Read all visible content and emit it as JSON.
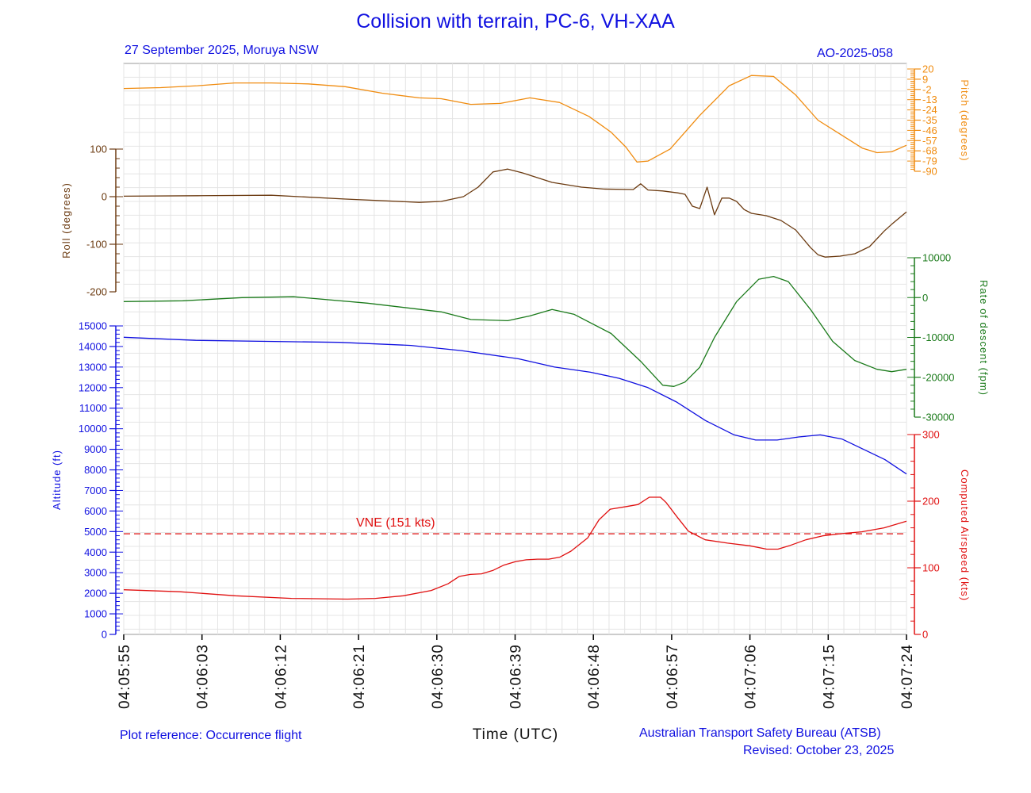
{
  "header": {
    "title": "Collision with terrain, PC-6, VH-XAA",
    "subtitle": "27 September 2025, Moruya NSW",
    "occurrence": "AO-2025-058"
  },
  "footer": {
    "plot_reference": "Plot reference: Occurrence flight",
    "agency": "Australian Transport Safety Bureau (ATSB)",
    "revised": "Revised: October 23, 2025"
  },
  "chart_data": {
    "type": "line",
    "xlabel": "Time (UTC)",
    "x_ticks": [
      "04:05:55",
      "04:06:03",
      "04:06:12",
      "04:06:21",
      "04:06:30",
      "04:06:39",
      "04:06:48",
      "04:06:57",
      "04:07:06",
      "04:07:15",
      "04:07:24"
    ],
    "grid": true,
    "colors": {
      "pitch": "#f08c10",
      "roll": "#6b3a10",
      "rod": "#1a7a1a",
      "altitude": "#1010e0",
      "airspeed": "#e01010"
    },
    "axes": {
      "pitch": {
        "label": "Pitch (degrees)",
        "ticks": [
          "20",
          "9",
          "-2",
          "-13",
          "-24",
          "-35",
          "-46",
          "-57",
          "-68",
          "-79",
          "-90"
        ],
        "range": [
          -90,
          20
        ],
        "side": "right"
      },
      "roll": {
        "label": "Roll (degrees)",
        "ticks": [
          "100",
          "0",
          "-100",
          "-200"
        ],
        "range": [
          -200,
          100
        ],
        "side": "left"
      },
      "rod": {
        "label": "Rate of descent (fpm)",
        "ticks": [
          "10000",
          "0",
          "-10000",
          "-20000",
          "-30000"
        ],
        "range": [
          -30000,
          10000
        ],
        "side": "right"
      },
      "altitude": {
        "label": "Altitude (ft)",
        "ticks": [
          "15000",
          "14000",
          "13000",
          "12000",
          "11000",
          "10000",
          "9000",
          "8000",
          "7000",
          "6000",
          "5000",
          "4000",
          "3000",
          "2000",
          "1000",
          "0"
        ],
        "range": [
          0,
          15000
        ],
        "side": "left"
      },
      "airspeed": {
        "label": "Computed Airspeed (kts)",
        "ticks": [
          "300",
          "200",
          "100",
          "0"
        ],
        "range": [
          0,
          300
        ],
        "side": "right"
      }
    },
    "reference_line": {
      "label": "VNE (151 kts)",
      "value": 151,
      "axis": "airspeed"
    },
    "series": [
      {
        "key": "pitch",
        "axis": "pitch",
        "points": [
          [
            0,
            -1
          ],
          [
            5,
            0
          ],
          [
            10,
            2
          ],
          [
            15,
            5
          ],
          [
            20,
            5
          ],
          [
            25,
            4
          ],
          [
            30,
            1
          ],
          [
            35,
            -6
          ],
          [
            40,
            -11
          ],
          [
            43,
            -12
          ],
          [
            47,
            -18
          ],
          [
            51,
            -17
          ],
          [
            55,
            -11
          ],
          [
            59,
            -16
          ],
          [
            63,
            -31
          ],
          [
            66,
            -48
          ],
          [
            68,
            -64
          ],
          [
            69.5,
            -80
          ],
          [
            71,
            -79
          ],
          [
            74,
            -66
          ],
          [
            78,
            -30
          ],
          [
            82,
            2
          ],
          [
            85,
            13
          ],
          [
            88,
            12
          ],
          [
            91,
            -8
          ],
          [
            94,
            -35
          ],
          [
            97,
            -50
          ],
          [
            100,
            -65
          ],
          [
            102,
            -70
          ],
          [
            104,
            -69
          ],
          [
            106,
            -62
          ]
        ]
      },
      {
        "key": "roll",
        "axis": "roll",
        "points": [
          [
            0,
            1
          ],
          [
            10,
            2
          ],
          [
            20,
            3
          ],
          [
            30,
            -5
          ],
          [
            40,
            -12
          ],
          [
            43,
            -10
          ],
          [
            46,
            0
          ],
          [
            48,
            20
          ],
          [
            50,
            52
          ],
          [
            52,
            58
          ],
          [
            54,
            50
          ],
          [
            58,
            30
          ],
          [
            62,
            20
          ],
          [
            65,
            16
          ],
          [
            69,
            15
          ],
          [
            70,
            27
          ],
          [
            71,
            14
          ],
          [
            73,
            12
          ],
          [
            75,
            8
          ],
          [
            76,
            5
          ],
          [
            77,
            -20
          ],
          [
            78,
            -25
          ],
          [
            79,
            20
          ],
          [
            80,
            -38
          ],
          [
            81,
            -3
          ],
          [
            82,
            -3
          ],
          [
            83,
            -10
          ],
          [
            84,
            -27
          ],
          [
            85,
            -35
          ],
          [
            87,
            -40
          ],
          [
            89,
            -50
          ],
          [
            91,
            -70
          ],
          [
            93,
            -107
          ],
          [
            94,
            -122
          ],
          [
            95,
            -127
          ],
          [
            97,
            -125
          ],
          [
            99,
            -120
          ],
          [
            101,
            -105
          ],
          [
            103,
            -72
          ],
          [
            104,
            -58
          ],
          [
            105,
            -45
          ],
          [
            106,
            -32
          ]
        ]
      },
      {
        "key": "rod",
        "axis": "rod",
        "points": [
          [
            0,
            -1000
          ],
          [
            8,
            -800
          ],
          [
            16,
            0
          ],
          [
            23,
            200
          ],
          [
            33,
            -1400
          ],
          [
            43,
            -3600
          ],
          [
            47,
            -5500
          ],
          [
            52,
            -5800
          ],
          [
            55,
            -4600
          ],
          [
            58,
            -3000
          ],
          [
            61,
            -4200
          ],
          [
            66,
            -9000
          ],
          [
            70,
            -16000
          ],
          [
            73,
            -22000
          ],
          [
            74.5,
            -22300
          ],
          [
            76,
            -21200
          ],
          [
            78,
            -17500
          ],
          [
            80,
            -10000
          ],
          [
            83,
            -1000
          ],
          [
            86,
            4600
          ],
          [
            88,
            5300
          ],
          [
            90,
            4000
          ],
          [
            93,
            -3000
          ],
          [
            96,
            -11000
          ],
          [
            99,
            -15800
          ],
          [
            102,
            -18000
          ],
          [
            104,
            -18600
          ],
          [
            106,
            -18000
          ]
        ]
      },
      {
        "key": "altitude",
        "axis": "altitude",
        "points": [
          [
            0,
            14450
          ],
          [
            10,
            14300
          ],
          [
            20,
            14250
          ],
          [
            30,
            14200
          ],
          [
            40,
            14050
          ],
          [
            47,
            13800
          ],
          [
            55,
            13400
          ],
          [
            60,
            13000
          ],
          [
            65,
            12750
          ],
          [
            69,
            12450
          ],
          [
            73,
            12000
          ],
          [
            77,
            11300
          ],
          [
            81,
            10400
          ],
          [
            85,
            9700
          ],
          [
            88,
            9450
          ],
          [
            91,
            9450
          ],
          [
            94,
            9600
          ],
          [
            97,
            9700
          ],
          [
            100,
            9500
          ],
          [
            103,
            9000
          ],
          [
            106,
            8500
          ],
          [
            109,
            7800
          ]
        ]
      },
      {
        "key": "airspeed",
        "axis": "airspeed",
        "points": [
          [
            0,
            67
          ],
          [
            10,
            64
          ],
          [
            20,
            58
          ],
          [
            30,
            54
          ],
          [
            40,
            53
          ],
          [
            45,
            54
          ],
          [
            50,
            58
          ],
          [
            55,
            66
          ],
          [
            58,
            76
          ],
          [
            60,
            87
          ],
          [
            62,
            90
          ],
          [
            64,
            91
          ],
          [
            66,
            96
          ],
          [
            68,
            104
          ],
          [
            70,
            109
          ],
          [
            72,
            112
          ],
          [
            74,
            113
          ],
          [
            76,
            113
          ],
          [
            78,
            116
          ],
          [
            80,
            125
          ],
          [
            83,
            145
          ],
          [
            85,
            172
          ],
          [
            87,
            188
          ],
          [
            90,
            192
          ],
          [
            92,
            195
          ],
          [
            94,
            206
          ],
          [
            96,
            206
          ],
          [
            97,
            198
          ],
          [
            99,
            176
          ],
          [
            101,
            155
          ],
          [
            104,
            142
          ],
          [
            108,
            137
          ],
          [
            112,
            133
          ],
          [
            115,
            128
          ],
          [
            117,
            128
          ],
          [
            119,
            133
          ],
          [
            122,
            142
          ],
          [
            125,
            148
          ],
          [
            128,
            151
          ],
          [
            132,
            154
          ],
          [
            136,
            160
          ],
          [
            140,
            170
          ]
        ]
      }
    ]
  }
}
